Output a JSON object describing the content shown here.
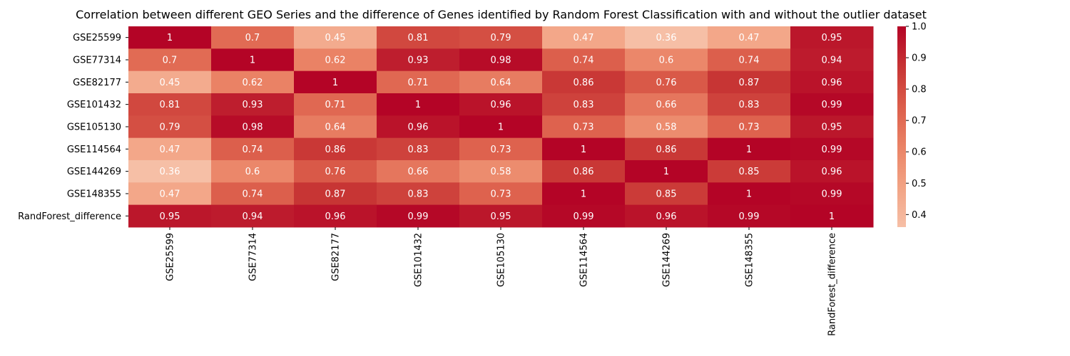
{
  "chart_data": {
    "type": "heatmap",
    "title": "Correlation between different GEO Series and the difference of Genes identified by Random Forest Classification with and without the outlier dataset",
    "xlabel": "",
    "ylabel": "",
    "row_labels": [
      "GSE25599",
      "GSE77314",
      "GSE82177",
      "GSE101432",
      "GSE105130",
      "GSE114564",
      "GSE144269",
      "GSE148355",
      "RandForest_difference"
    ],
    "col_labels": [
      "GSE25599",
      "GSE77314",
      "GSE82177",
      "GSE101432",
      "GSE105130",
      "GSE114564",
      "GSE144269",
      "GSE148355",
      "RandForest_difference"
    ],
    "values": [
      [
        1,
        0.7,
        0.45,
        0.81,
        0.79,
        0.47,
        0.36,
        0.47,
        0.95
      ],
      [
        0.7,
        1,
        0.62,
        0.93,
        0.98,
        0.74,
        0.6,
        0.74,
        0.94
      ],
      [
        0.45,
        0.62,
        1,
        0.71,
        0.64,
        0.86,
        0.76,
        0.87,
        0.96
      ],
      [
        0.81,
        0.93,
        0.71,
        1,
        0.96,
        0.83,
        0.66,
        0.83,
        0.99
      ],
      [
        0.79,
        0.98,
        0.64,
        0.96,
        1,
        0.73,
        0.58,
        0.73,
        0.95
      ],
      [
        0.47,
        0.74,
        0.86,
        0.83,
        0.73,
        1,
        0.86,
        1,
        0.99
      ],
      [
        0.36,
        0.6,
        0.76,
        0.66,
        0.58,
        0.86,
        1,
        0.85,
        0.96
      ],
      [
        0.47,
        0.74,
        0.87,
        0.83,
        0.73,
        1,
        0.85,
        1,
        0.99
      ],
      [
        0.95,
        0.94,
        0.96,
        0.99,
        0.95,
        0.99,
        0.96,
        0.99,
        1
      ]
    ],
    "colormap": "coolwarm (upper half)",
    "color_range": [
      0.36,
      1.0
    ],
    "colorbar_ticks": [
      "0.4",
      "0.5",
      "0.6",
      "0.7",
      "0.8",
      "0.9",
      "1.0"
    ],
    "annotations": true,
    "grid": false,
    "legend_placement": "colorbar right"
  }
}
